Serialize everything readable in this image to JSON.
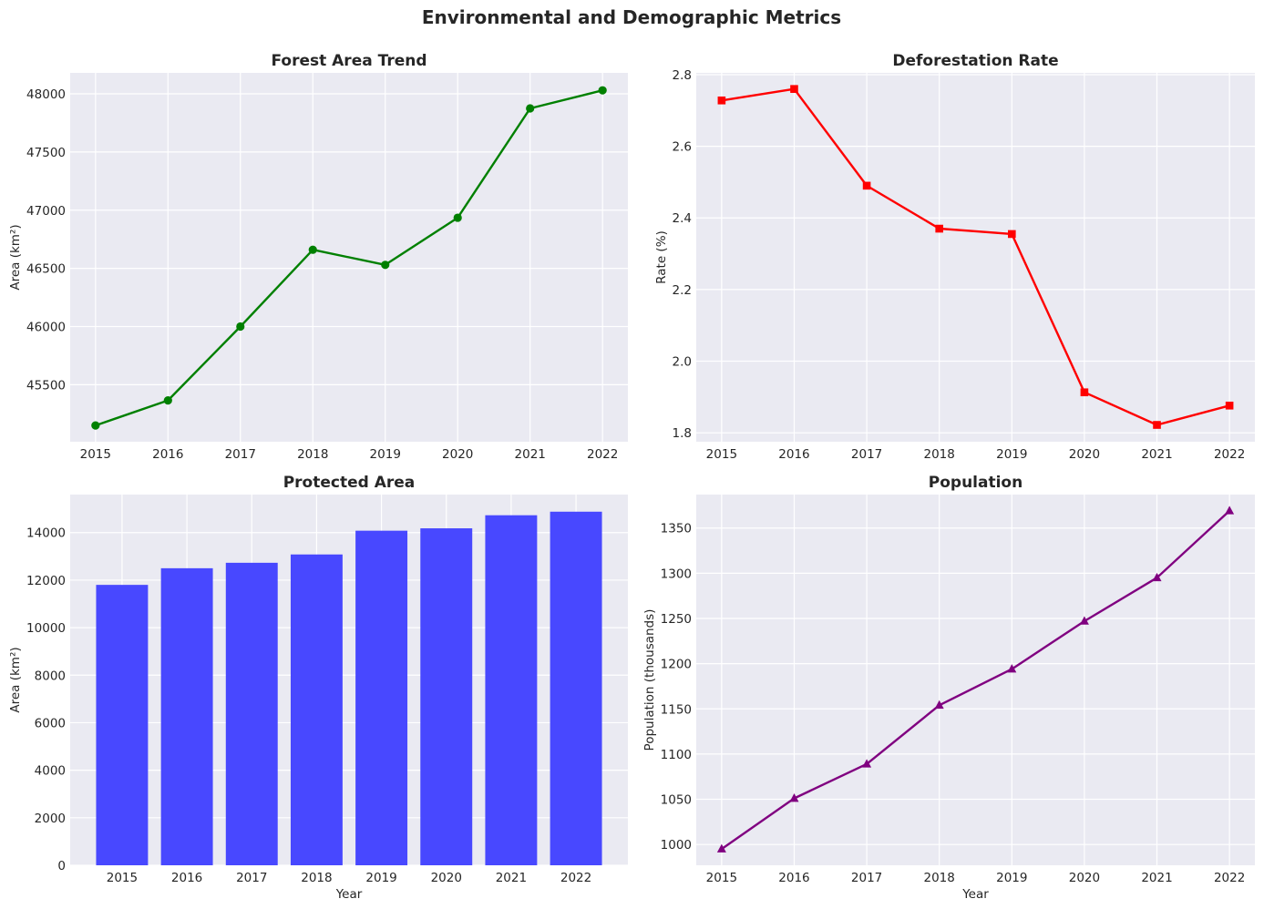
{
  "suptitle": "Environmental and Demographic Metrics",
  "chart_data": [
    {
      "id": "forest",
      "type": "line",
      "title": "Forest Area Trend",
      "xlabel": "",
      "ylabel": "Area (km²)",
      "x": [
        2015,
        2016,
        2017,
        2018,
        2019,
        2020,
        2021,
        2022
      ],
      "values": [
        45150,
        45365,
        46000,
        46660,
        46530,
        46935,
        47875,
        48030
      ],
      "color": "#008000",
      "marker": "circle",
      "xlim": [
        2014.65,
        2022.35
      ],
      "ylim": [
        45010,
        48180
      ],
      "yticks": [
        45500,
        46000,
        46500,
        47000,
        47500,
        48000
      ],
      "grid": true
    },
    {
      "id": "deforest",
      "type": "line",
      "title": "Deforestation Rate",
      "xlabel": "",
      "ylabel": "Rate (%)",
      "x": [
        2015,
        2016,
        2017,
        2018,
        2019,
        2020,
        2021,
        2022
      ],
      "values": [
        2.728,
        2.76,
        2.49,
        2.37,
        2.355,
        1.913,
        1.822,
        1.876
      ],
      "color": "#ff0000",
      "marker": "square",
      "xlim": [
        2014.65,
        2022.35
      ],
      "ylim": [
        1.775,
        2.805
      ],
      "yticks": [
        1.8,
        2.0,
        2.2,
        2.4,
        2.6,
        2.8
      ],
      "ytick_decimals": 1,
      "grid": true
    },
    {
      "id": "protected",
      "type": "bar",
      "title": "Protected Area",
      "xlabel": "Year",
      "ylabel": "Area (km²)",
      "categories": [
        "2015",
        "2016",
        "2017",
        "2018",
        "2019",
        "2020",
        "2021",
        "2022"
      ],
      "values": [
        11800,
        12500,
        12730,
        13080,
        14080,
        14180,
        14730,
        14880
      ],
      "color": "#4444ff",
      "xlim": [
        -0.8,
        7.8
      ],
      "ylim": [
        0,
        15600
      ],
      "yticks": [
        0,
        2000,
        4000,
        6000,
        8000,
        10000,
        12000,
        14000
      ],
      "grid": true
    },
    {
      "id": "population",
      "type": "line",
      "title": "Population",
      "xlabel": "Year",
      "ylabel": "Population (thousands)",
      "x": [
        2015,
        2016,
        2017,
        2018,
        2019,
        2020,
        2021,
        2022
      ],
      "values": [
        995,
        1051,
        1089,
        1154,
        1194,
        1247,
        1295,
        1369
      ],
      "color": "#800080",
      "marker": "triangle",
      "xlim": [
        2014.65,
        2022.35
      ],
      "ylim": [
        977,
        1387
      ],
      "yticks": [
        1000,
        1050,
        1100,
        1150,
        1200,
        1250,
        1300,
        1350
      ],
      "grid": true
    }
  ]
}
